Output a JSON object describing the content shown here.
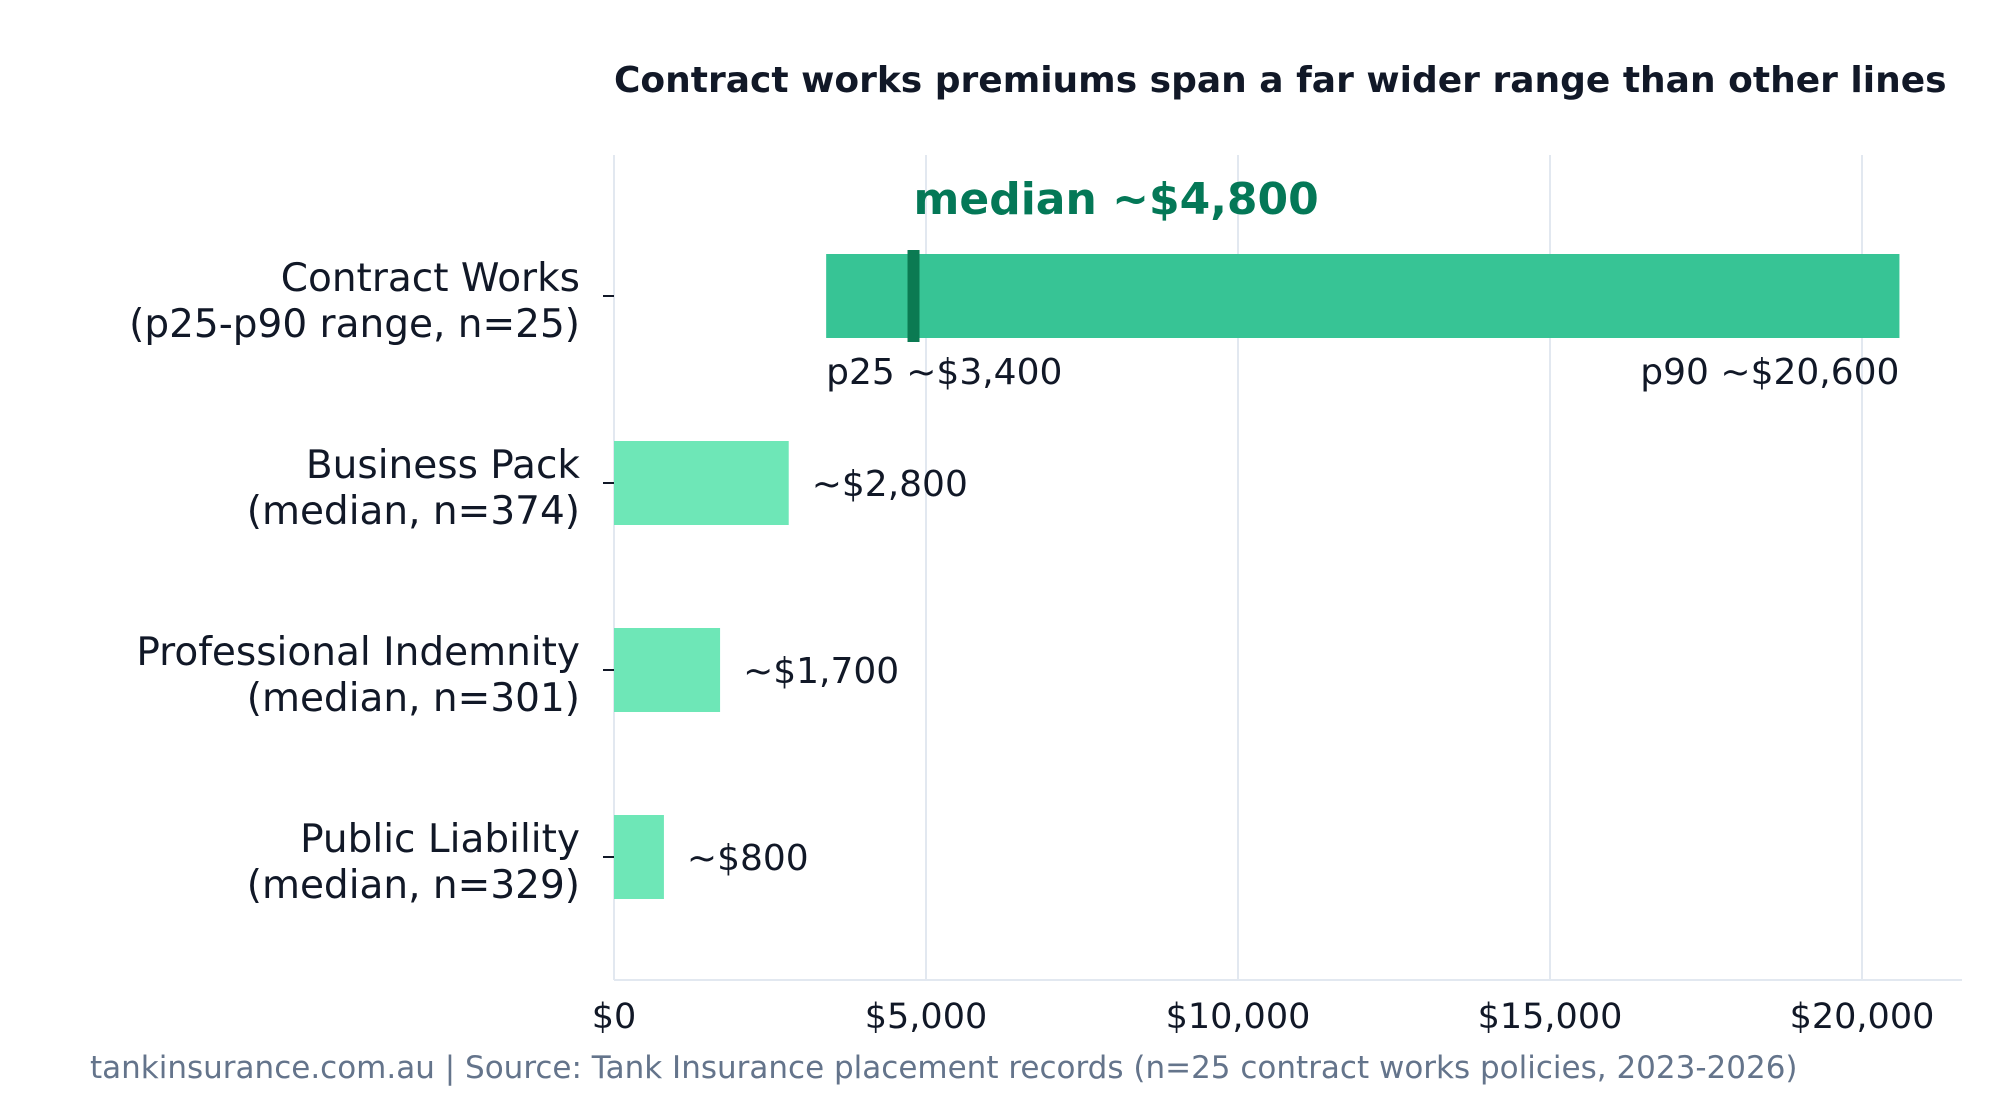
{
  "footer_text": "tankinsurance.com.au | Source: Tank Insurance placement records (n=25 contract works policies, 2023-2026)",
  "colors": {
    "range_bar": "#37c495",
    "median_bar": "#6ee7b7",
    "median_marker": "#0b7a52",
    "median_text": "#047857",
    "gridline": "#e2e8f0",
    "text": "#111827",
    "footer": "#64748b"
  },
  "chart_data": {
    "type": "bar",
    "orientation": "horizontal",
    "title": "Contract works premiums span a far wider range than other lines",
    "xlim": [
      0,
      21600
    ],
    "x_ticks": [
      {
        "value": 0,
        "label": "$0"
      },
      {
        "value": 5000,
        "label": "$5,000"
      },
      {
        "value": 10000,
        "label": "$10,000"
      },
      {
        "value": 15000,
        "label": "$15,000"
      },
      {
        "value": 20000,
        "label": "$20,000"
      }
    ],
    "grid": true,
    "range_series": {
      "category": [
        "Contract Works",
        "(p25-p90 range, n=25)"
      ],
      "p25": 3400,
      "p90": 20600,
      "median": 4800,
      "p25_label": "p25 ~$3,400",
      "p90_label": "p90 ~$20,600",
      "median_label": "median ~$4,800"
    },
    "median_series": [
      {
        "category": [
          "Business Pack",
          "(median, n=374)"
        ],
        "value": 2800,
        "label": "~$2,800"
      },
      {
        "category": [
          "Professional Indemnity",
          "(median, n=301)"
        ],
        "value": 1700,
        "label": "~$1,700"
      },
      {
        "category": [
          "Public Liability",
          "(median, n=329)"
        ],
        "value": 800,
        "label": "~$800"
      }
    ]
  }
}
